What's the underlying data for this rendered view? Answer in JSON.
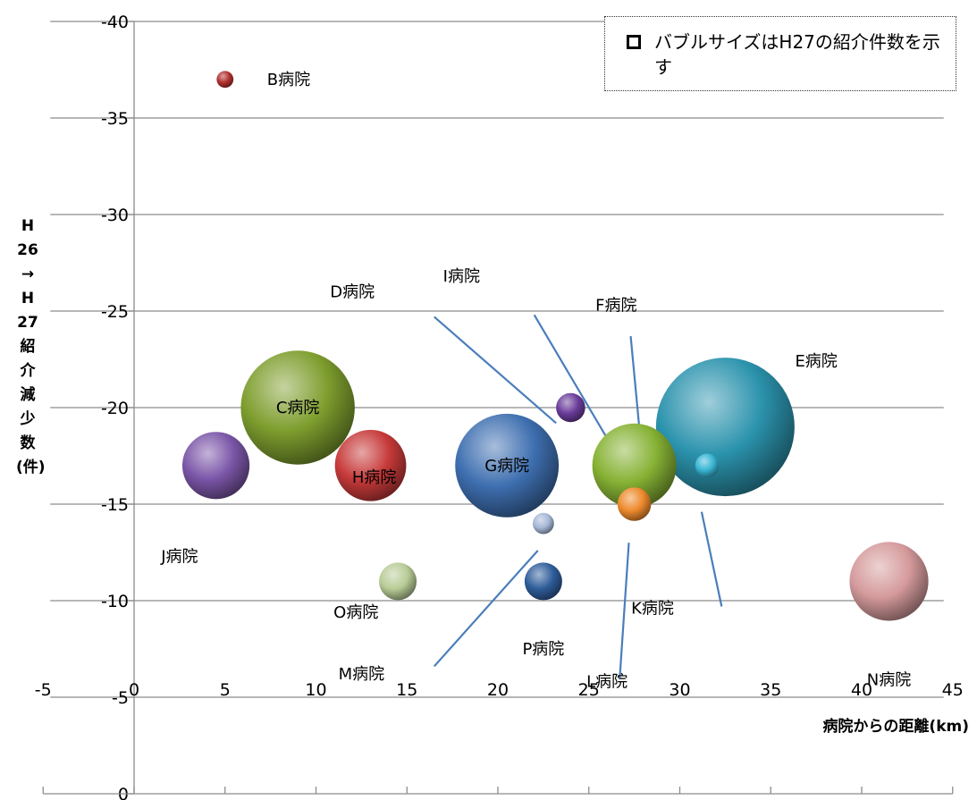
{
  "chart_data": {
    "type": "bubble",
    "title": "",
    "xlabel": "病院からの距離(km)",
    "ylabel": "H26→H27紹介減少数(件)",
    "xlim": [
      -5,
      45
    ],
    "ylim": [
      -40,
      0
    ],
    "y_reversed": true,
    "x_ticks": [
      -5,
      0,
      5,
      10,
      15,
      20,
      25,
      30,
      35,
      40,
      45
    ],
    "x_tick_labels": [
      "-5",
      "0",
      "5",
      "10",
      "15",
      "20",
      "25",
      "30",
      "35",
      "40",
      "45"
    ],
    "y_ticks": [
      -40,
      -35,
      -30,
      -25,
      -20,
      -15,
      -10,
      -5,
      0
    ],
    "y_tick_labels": [
      "-40",
      "-35",
      "-30",
      "-25",
      "-20",
      "-15",
      "-10",
      "-5",
      "0"
    ],
    "grid": true,
    "legend": {
      "placement": "top-right",
      "text": "バブルサイズはH27の紹介件数を示す"
    },
    "points": [
      {
        "label": "B病院",
        "x": 5.0,
        "y": -37.0,
        "size": 1,
        "color": "#b03030"
      },
      {
        "label": "C病院",
        "x": 9.0,
        "y": -20.0,
        "size": 46,
        "color": "#7e9e2e"
      },
      {
        "label": "J病院",
        "x": 4.5,
        "y": -17.0,
        "size": 16,
        "color": "#7b56a8"
      },
      {
        "label": "H病院",
        "x": 13.0,
        "y": -17.0,
        "size": 18,
        "color": "#c73a3a"
      },
      {
        "label": "G病院",
        "x": 20.5,
        "y": -17.0,
        "size": 38,
        "color": "#3e6fb0"
      },
      {
        "label": "D病院",
        "x": 24.0,
        "y": -20.0,
        "size": 3,
        "color": "#6a3c9a"
      },
      {
        "label": "I病院",
        "x": 27.5,
        "y": -17.0,
        "size": 25,
        "color": "#86b234"
      },
      {
        "label": "F病院",
        "x": 27.5,
        "y": -15.0,
        "size": 4,
        "color": "#ee8a2c"
      },
      {
        "label": "E病院",
        "x": 32.5,
        "y": -19.0,
        "size": 68,
        "color": "#2b93ad"
      },
      {
        "label": "K病院",
        "x": 31.5,
        "y": -17.0,
        "size": 2,
        "color": "#38b6d4"
      },
      {
        "label": "O病院",
        "x": 14.5,
        "y": -11.0,
        "size": 5,
        "color": "#b8cc96"
      },
      {
        "label": "P病院",
        "x": 22.5,
        "y": -14.0,
        "size": 1.6,
        "color": "#a6b8d6"
      },
      {
        "label": "M病院",
        "x": 22.5,
        "y": -11.0,
        "size": 5,
        "color": "#2f5d9a"
      },
      {
        "label": "N病院",
        "x": 41.5,
        "y": -11.0,
        "size": 22,
        "color": "#d59a9c"
      }
    ],
    "annotations": [
      {
        "label": "D病院",
        "x": 12.0,
        "y": -26.0
      },
      {
        "label": "I病院",
        "x": 18.0,
        "y": -26.8
      },
      {
        "label": "F病院",
        "x": 26.5,
        "y": -25.3
      },
      {
        "label": "E病院",
        "x": 37.5,
        "y": -22.4
      },
      {
        "label": "C病院",
        "x": 9.0,
        "y": -20.0
      },
      {
        "label": "H病院",
        "x": 13.2,
        "y": -16.4
      },
      {
        "label": "G病院",
        "x": 20.5,
        "y": -17.0
      },
      {
        "label": "J病院",
        "x": 2.5,
        "y": -12.3
      },
      {
        "label": "K病院",
        "x": 28.5,
        "y": -9.6
      },
      {
        "label": "O病院",
        "x": 12.2,
        "y": -9.4
      },
      {
        "label": "P病院",
        "x": 22.5,
        "y": -7.5
      },
      {
        "label": "M病院",
        "x": 12.5,
        "y": -6.2
      },
      {
        "label": "L病院",
        "x": 26.0,
        "y": -5.8
      },
      {
        "label": "N病院",
        "x": 41.5,
        "y": -5.9
      },
      {
        "label": "B病院",
        "x": 8.5,
        "y": -37.0
      }
    ],
    "leader_lines": [
      {
        "from": [
          16.5,
          -24.7
        ],
        "to": [
          23.2,
          -19.2
        ]
      },
      {
        "from": [
          22.0,
          -24.8
        ],
        "to": [
          26.7,
          -17.3
        ]
      },
      {
        "from": [
          27.3,
          -23.7
        ],
        "to": [
          28.0,
          -16.7
        ]
      },
      {
        "from": [
          16.5,
          -6.6
        ],
        "to": [
          22.2,
          -12.6
        ]
      },
      {
        "from": [
          27.2,
          -13.0
        ],
        "to": [
          26.7,
          -6.0
        ]
      },
      {
        "from": [
          31.2,
          -14.6
        ],
        "to": [
          32.3,
          -9.7
        ]
      }
    ]
  }
}
